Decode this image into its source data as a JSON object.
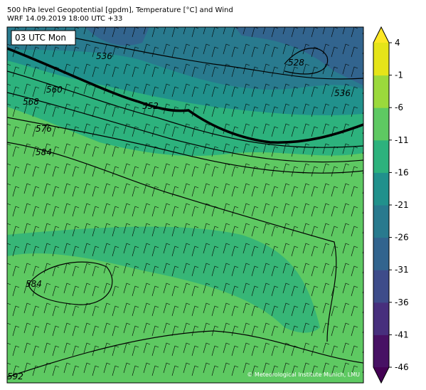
{
  "header": {
    "title": "500 hPa level Geopotential [gpdm], Temperature [°C] and Wind",
    "subtitle": "WRF 14.09.2019 18:00 UTC +33"
  },
  "map": {
    "time_label": "03 UTC Mon",
    "contour_labels": [
      "536",
      "528",
      "536",
      "560",
      "552",
      "568",
      "576",
      "584",
      "584",
      "592"
    ],
    "credit": "© Meteorological Institute Munich, LMU"
  },
  "colorbar": {
    "lim": [
      -46,
      4
    ],
    "ticks": [
      4,
      -1,
      -6,
      -11,
      -16,
      -21,
      -26,
      -31,
      -36,
      -41,
      -46
    ],
    "colors": [
      "#471164",
      "#472f7d",
      "#3e4c8a",
      "#32648e",
      "#297a8e",
      "#21918c",
      "#2db27d",
      "#5ec962",
      "#9bd93c",
      "#e5e419"
    ],
    "extend_colors": [
      "#440154",
      "#fde725"
    ]
  }
}
